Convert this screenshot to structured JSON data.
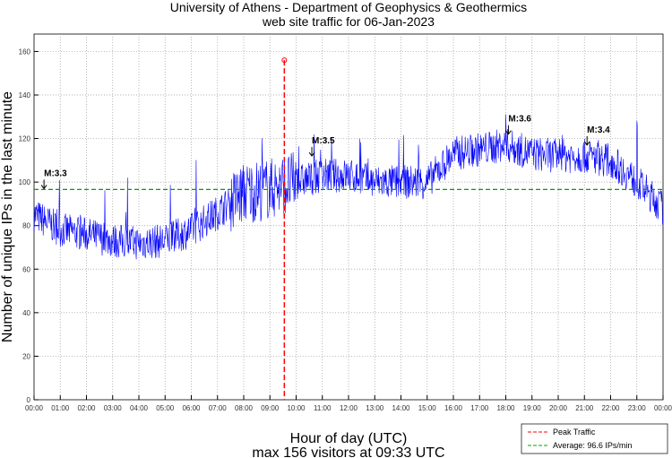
{
  "chart_data": {
    "type": "line",
    "title": [
      "University of Athens - Department of Geophysics & Geothermics",
      "web site traffic for 06-Jan-2023"
    ],
    "xlabel": "Hour of day (UTC)",
    "subtitle": "max 156 visitors at 09:33 UTC",
    "ylabel": "Number of unique IPs in the last minute",
    "ylim": [
      0,
      168
    ],
    "yticks": [
      0,
      20,
      40,
      60,
      80,
      100,
      120,
      140,
      160
    ],
    "xticks": [
      "00:00",
      "01:00",
      "02:00",
      "03:00",
      "04:00",
      "05:00",
      "06:00",
      "07:00",
      "08:00",
      "09:00",
      "10:00",
      "11:00",
      "12:00",
      "13:00",
      "14:00",
      "15:00",
      "16:00",
      "17:00",
      "18:00",
      "19:00",
      "20:00",
      "21:00",
      "22:00",
      "23:00",
      "00:00"
    ],
    "grid": true,
    "series": [
      {
        "name": "Traffic",
        "color": "#0000ff",
        "hourly_mean": [
          85,
          78,
          76,
          73,
          72,
          73,
          78,
          86,
          95,
          97,
          100,
          103,
          103,
          100,
          100,
          100,
          113,
          115,
          117,
          113,
          112,
          112,
          110,
          100,
          88
        ],
        "noise_amplitude": 8
      }
    ],
    "peak": {
      "label": "Peak Traffic",
      "hour": 9.55,
      "value": 156,
      "color": "#ff0000"
    },
    "average": {
      "label": "Average: 96.6 IPs/min",
      "value": 96.6,
      "color": "#00a000"
    },
    "annotations": [
      {
        "text": "M:3.3",
        "hour": 0.38,
        "value": 97
      },
      {
        "text": "M:3.5",
        "hour": 10.6,
        "value": 112
      },
      {
        "text": "M:3.6",
        "hour": 18.1,
        "value": 122
      },
      {
        "text": "M:3.4",
        "hour": 21.1,
        "value": 117
      }
    ],
    "legend_position": "bottom-right"
  }
}
